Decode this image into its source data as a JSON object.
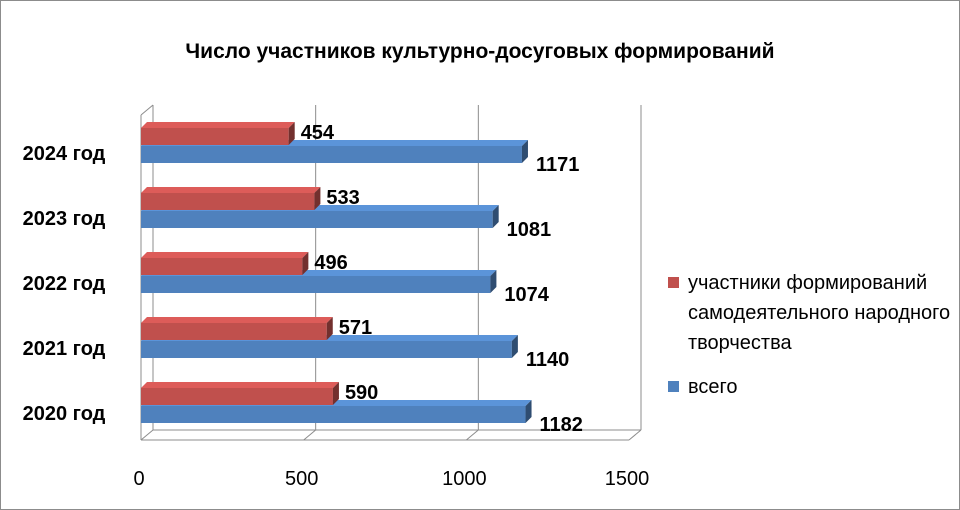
{
  "chart_data": {
    "type": "bar",
    "orientation": "horizontal",
    "title": "Число участников культурно-досуговых формирований",
    "categories": [
      "2024 год",
      "2023 год",
      "2022 год",
      "2021 год",
      "2020 год"
    ],
    "series": [
      {
        "name": "участники формирований самодеятельного народного творчества",
        "values": [
          454,
          533,
          496,
          571,
          590
        ],
        "color": "#c0504d"
      },
      {
        "name": "всего",
        "values": [
          1171,
          1081,
          1074,
          1140,
          1182
        ],
        "color": "#4f81bd"
      }
    ],
    "x_ticks": [
      "0",
      "500",
      "1000",
      "1500"
    ],
    "xlim": [
      0,
      1500
    ],
    "grid": true,
    "legend_position": "right",
    "style": "3d"
  }
}
